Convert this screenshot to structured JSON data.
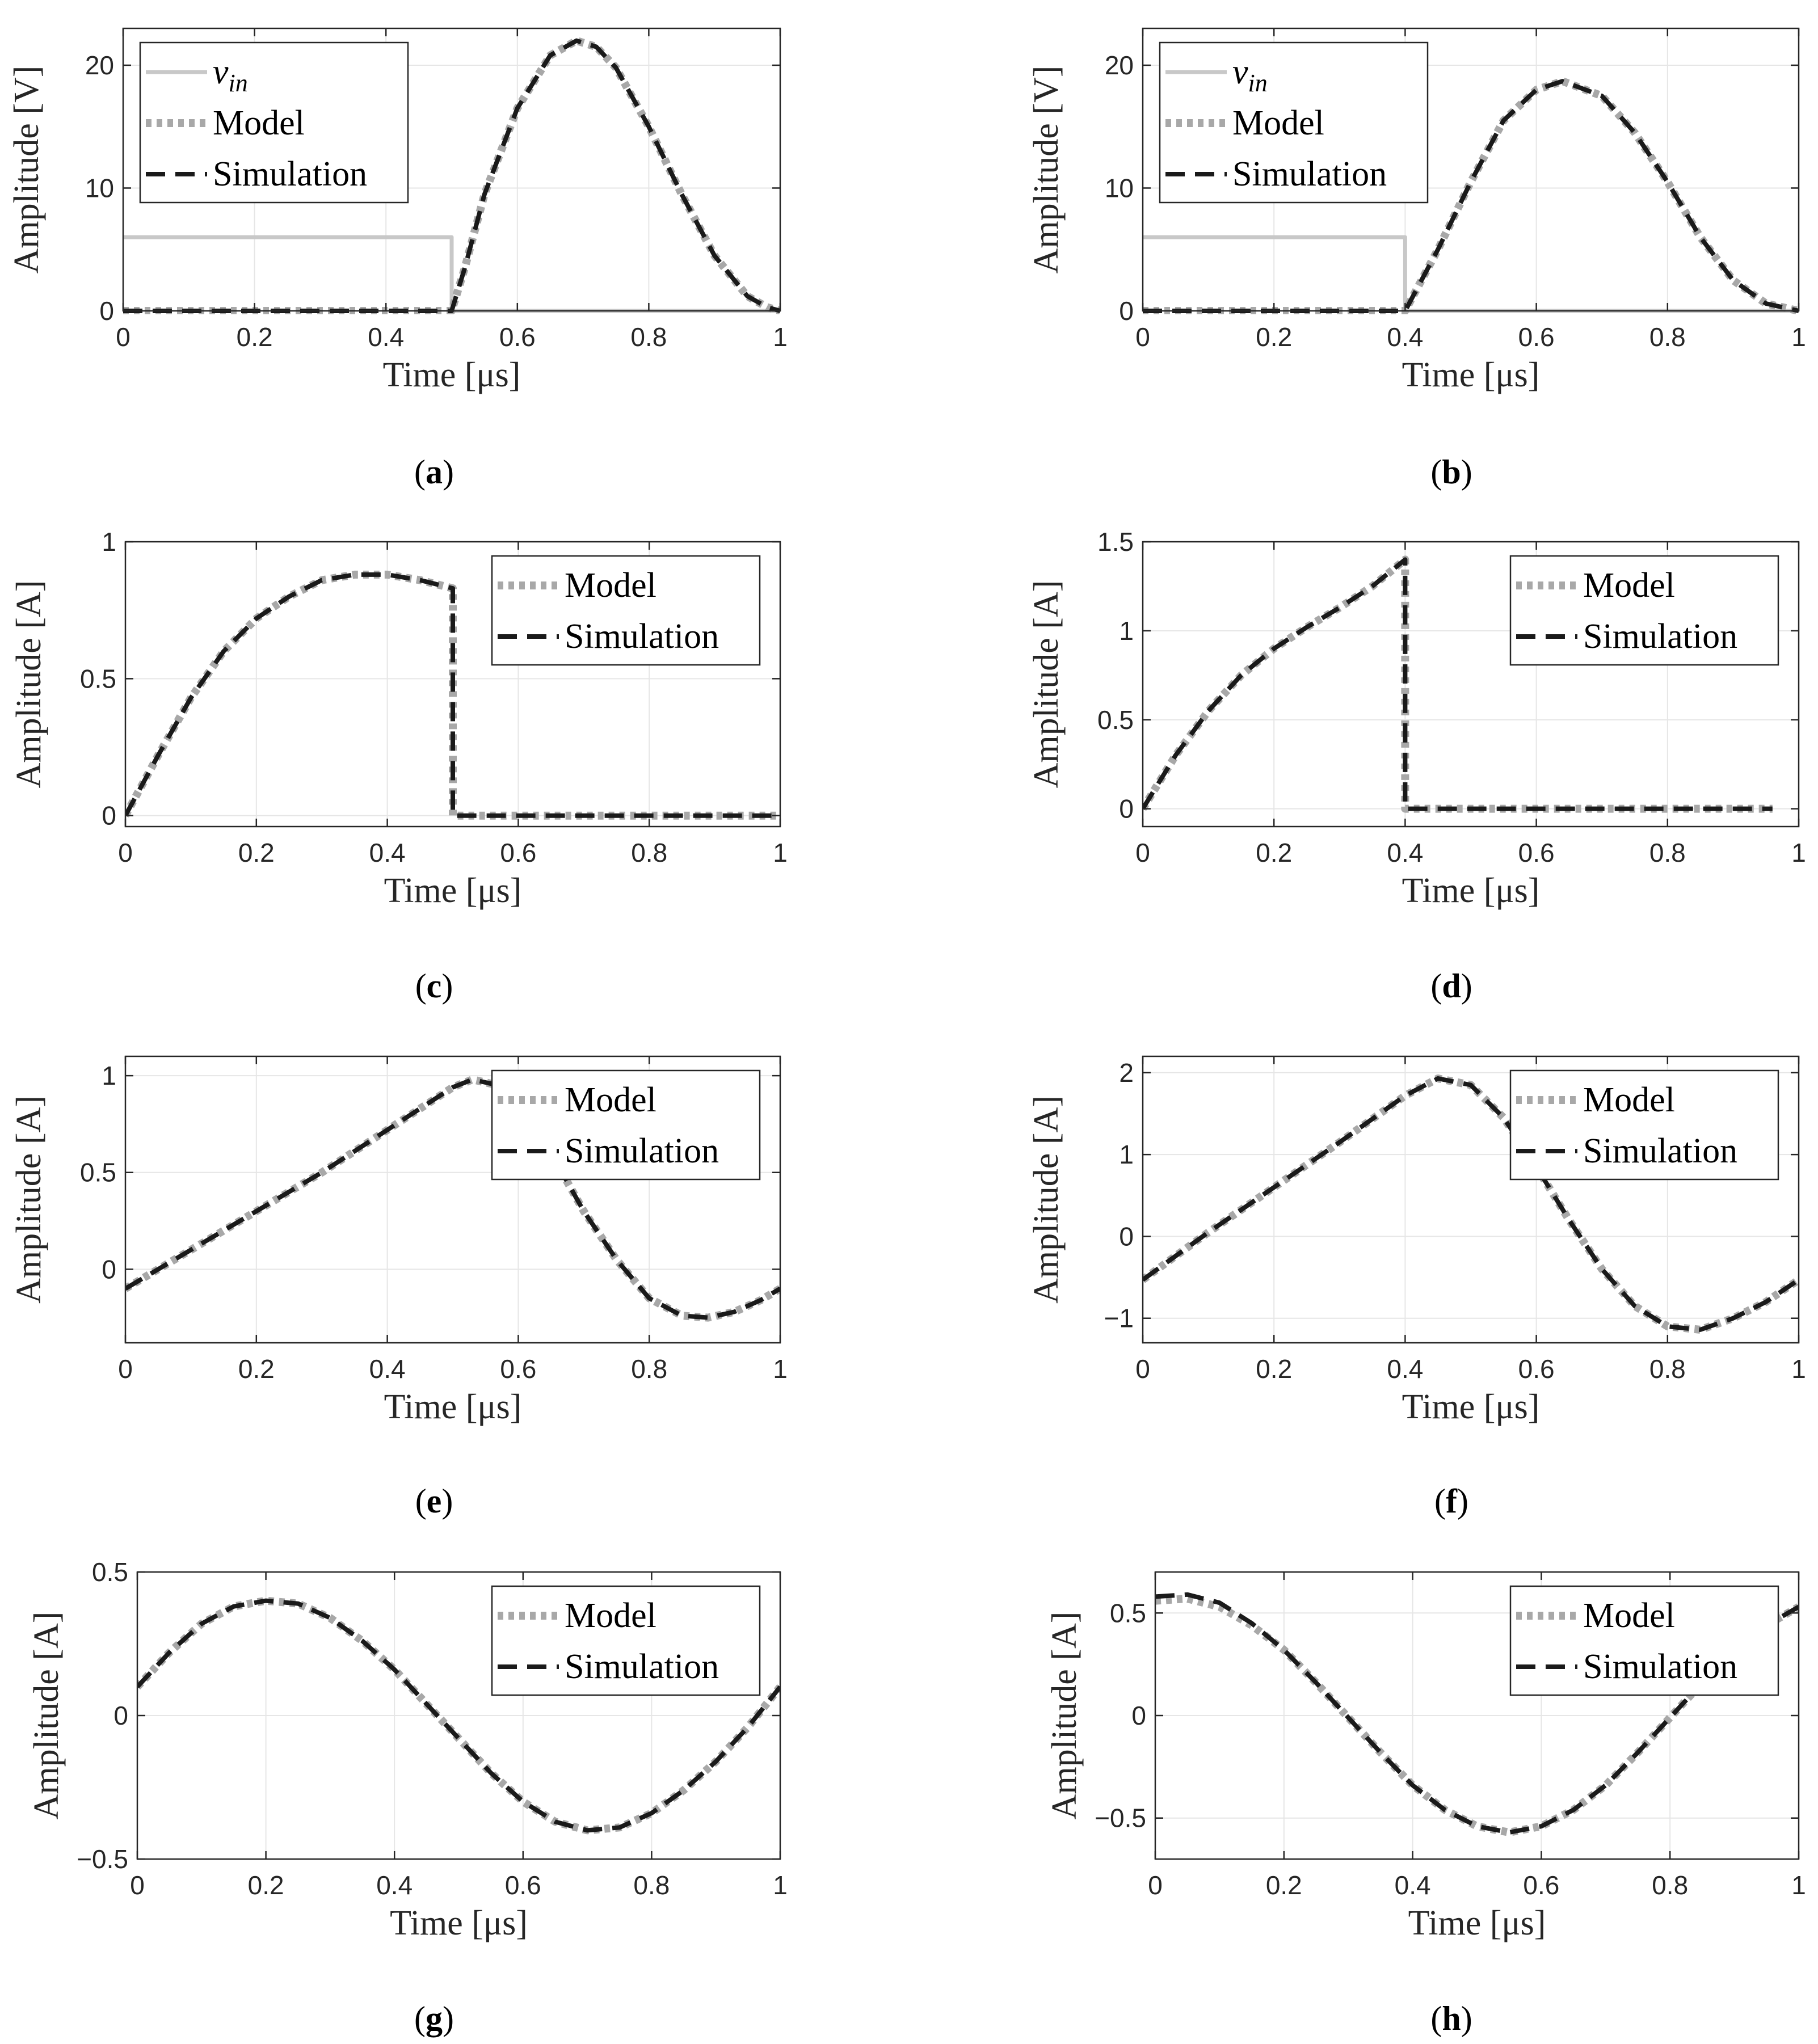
{
  "chart_data": [
    {
      "id": "a",
      "caption": "a",
      "type": "line",
      "xlabel": "Time [μs]",
      "ylabel": "Amplitude [V]",
      "xlim": [
        0,
        1
      ],
      "ylim": [
        0,
        23
      ],
      "xticks": [
        0,
        0.2,
        0.4,
        0.6,
        0.8,
        1
      ],
      "xticklabels": [
        "0",
        "0.2",
        "0.4",
        "0.6",
        "0.8",
        "1"
      ],
      "yticks": [
        0,
        10,
        20
      ],
      "yticklabels": [
        "0",
        "10",
        "20"
      ],
      "grid": true,
      "legend_position": "top-left",
      "series": [
        {
          "name": "v",
          "name_sub": "in",
          "style": "vin",
          "x": [
            0,
            0.5,
            0.5,
            0.5,
            1
          ],
          "y": [
            6,
            6,
            0,
            0,
            0
          ]
        },
        {
          "name": "Model",
          "style": "model",
          "x": [
            0,
            0.5,
            0.52,
            0.55,
            0.6,
            0.65,
            0.69,
            0.72,
            0.75,
            0.8,
            0.85,
            0.9,
            0.95,
            0.98,
            1.0
          ],
          "y": [
            0,
            0,
            3.5,
            9.5,
            16.5,
            20.8,
            22,
            21.5,
            19.8,
            15,
            9.5,
            4.5,
            1.2,
            0.3,
            0
          ]
        },
        {
          "name": "Simulation",
          "style": "sim",
          "x": [
            0,
            0.5,
            0.52,
            0.55,
            0.6,
            0.65,
            0.69,
            0.72,
            0.75,
            0.8,
            0.85,
            0.9,
            0.95,
            0.98,
            1.0
          ],
          "y": [
            0,
            0,
            3.5,
            9.5,
            16.5,
            20.8,
            22,
            21.5,
            19.8,
            15,
            9.5,
            4.5,
            1.2,
            0.3,
            0
          ]
        }
      ]
    },
    {
      "id": "b",
      "caption": "b",
      "type": "line",
      "xlabel": "Time [μs]",
      "ylabel": "Amplitude [V]",
      "xlim": [
        0,
        1
      ],
      "ylim": [
        0,
        23
      ],
      "xticks": [
        0,
        0.2,
        0.4,
        0.6,
        0.8,
        1
      ],
      "xticklabels": [
        "0",
        "0.2",
        "0.4",
        "0.6",
        "0.8",
        "1"
      ],
      "yticks": [
        0,
        10,
        20
      ],
      "yticklabels": [
        "0",
        "10",
        "20"
      ],
      "grid": true,
      "legend_position": "top-left",
      "series": [
        {
          "name": "v",
          "name_sub": "in",
          "style": "vin",
          "x": [
            0,
            0.4,
            0.4,
            0.4,
            1
          ],
          "y": [
            6,
            6,
            0,
            0,
            0
          ]
        },
        {
          "name": "Model",
          "style": "model",
          "x": [
            0,
            0.4,
            0.45,
            0.5,
            0.55,
            0.6,
            0.64,
            0.7,
            0.75,
            0.8,
            0.85,
            0.9,
            0.95,
            1.0
          ],
          "y": [
            0,
            0,
            5,
            10.5,
            15.5,
            18,
            18.7,
            17.5,
            14.5,
            10.5,
            6,
            2.5,
            0.6,
            0
          ]
        },
        {
          "name": "Simulation",
          "style": "sim",
          "x": [
            0,
            0.4,
            0.45,
            0.5,
            0.55,
            0.6,
            0.64,
            0.7,
            0.75,
            0.8,
            0.85,
            0.9,
            0.95,
            1.0
          ],
          "y": [
            0,
            0,
            5,
            10.5,
            15.5,
            18,
            18.7,
            17.5,
            14.5,
            10.5,
            6,
            2.5,
            0.6,
            0
          ]
        }
      ]
    },
    {
      "id": "c",
      "caption": "c",
      "type": "line",
      "xlabel": "Time [μs]",
      "ylabel": "Amplitude [A]",
      "xlim": [
        0,
        1
      ],
      "ylim": [
        -0.04,
        1
      ],
      "xticks": [
        0,
        0.2,
        0.4,
        0.6,
        0.8,
        1
      ],
      "xticklabels": [
        "0",
        "0.2",
        "0.4",
        "0.6",
        "0.8",
        "1"
      ],
      "yticks": [
        0,
        0.5,
        1
      ],
      "yticklabels": [
        "0",
        "0.5",
        "1"
      ],
      "grid": true,
      "legend_position": "top-right",
      "series": [
        {
          "name": "Model",
          "style": "model",
          "x": [
            0,
            0.05,
            0.1,
            0.15,
            0.2,
            0.25,
            0.3,
            0.35,
            0.37,
            0.4,
            0.45,
            0.5,
            0.5,
            1.0
          ],
          "y": [
            0,
            0.22,
            0.43,
            0.6,
            0.72,
            0.8,
            0.86,
            0.88,
            0.88,
            0.88,
            0.86,
            0.83,
            0,
            0
          ]
        },
        {
          "name": "Simulation",
          "style": "sim",
          "x": [
            0,
            0.05,
            0.1,
            0.15,
            0.2,
            0.25,
            0.3,
            0.35,
            0.37,
            0.4,
            0.45,
            0.5,
            0.5,
            1.0
          ],
          "y": [
            0,
            0.22,
            0.43,
            0.6,
            0.72,
            0.8,
            0.86,
            0.88,
            0.88,
            0.88,
            0.86,
            0.83,
            0,
            0
          ]
        }
      ]
    },
    {
      "id": "d",
      "caption": "d",
      "type": "line",
      "xlabel": "Time [μs]",
      "ylabel": "Amplitude [A]",
      "xlim": [
        0,
        1
      ],
      "ylim": [
        -0.1,
        1.5
      ],
      "xticks": [
        0,
        0.2,
        0.4,
        0.6,
        0.8,
        1
      ],
      "xticklabels": [
        "0",
        "0.2",
        "0.4",
        "0.6",
        "0.8",
        "1"
      ],
      "yticks": [
        0,
        0.5,
        1,
        1.5
      ],
      "yticklabels": [
        "0",
        "0.5",
        "1",
        "1.5"
      ],
      "grid": true,
      "legend_position": "top-right",
      "series": [
        {
          "name": "Model",
          "style": "model",
          "x": [
            0,
            0.05,
            0.1,
            0.15,
            0.2,
            0.25,
            0.3,
            0.35,
            0.4,
            0.4,
            0.96
          ],
          "y": [
            0,
            0.3,
            0.55,
            0.75,
            0.9,
            1.02,
            1.13,
            1.25,
            1.4,
            0,
            0
          ]
        },
        {
          "name": "Simulation",
          "style": "sim",
          "x": [
            0,
            0.05,
            0.1,
            0.15,
            0.2,
            0.25,
            0.3,
            0.35,
            0.4,
            0.4,
            0.96
          ],
          "y": [
            0,
            0.3,
            0.55,
            0.75,
            0.9,
            1.02,
            1.13,
            1.25,
            1.4,
            0,
            0
          ]
        }
      ]
    },
    {
      "id": "e",
      "caption": "e",
      "type": "line",
      "xlabel": "Time [μs]",
      "ylabel": "Amplitude [A]",
      "xlim": [
        0,
        1
      ],
      "ylim": [
        -0.38,
        1.1
      ],
      "xticks": [
        0,
        0.2,
        0.4,
        0.6,
        0.8,
        1
      ],
      "xticklabels": [
        "0",
        "0.2",
        "0.4",
        "0.6",
        "0.8",
        "1"
      ],
      "yticks": [
        0,
        0.5,
        1
      ],
      "yticklabels": [
        "0",
        "0.5",
        "1"
      ],
      "grid": true,
      "legend_position": "top-right",
      "series": [
        {
          "name": "Model",
          "style": "model",
          "x": [
            0,
            0.1,
            0.2,
            0.3,
            0.4,
            0.5,
            0.53,
            0.57,
            0.6,
            0.65,
            0.7,
            0.75,
            0.8,
            0.85,
            0.89,
            0.93,
            0.97,
            1.0
          ],
          "y": [
            -0.1,
            0.1,
            0.3,
            0.5,
            0.72,
            0.94,
            0.98,
            0.95,
            0.85,
            0.6,
            0.3,
            0.05,
            -0.15,
            -0.24,
            -0.25,
            -0.22,
            -0.16,
            -0.1
          ]
        },
        {
          "name": "Simulation",
          "style": "sim",
          "x": [
            0,
            0.1,
            0.2,
            0.3,
            0.4,
            0.5,
            0.53,
            0.57,
            0.6,
            0.65,
            0.7,
            0.75,
            0.8,
            0.85,
            0.89,
            0.93,
            0.97,
            1.0
          ],
          "y": [
            -0.1,
            0.1,
            0.3,
            0.5,
            0.72,
            0.94,
            0.98,
            0.95,
            0.85,
            0.6,
            0.3,
            0.05,
            -0.15,
            -0.24,
            -0.25,
            -0.22,
            -0.16,
            -0.1
          ]
        }
      ]
    },
    {
      "id": "f",
      "caption": "f",
      "type": "line",
      "xlabel": "Time [μs]",
      "ylabel": "Amplitude [A]",
      "xlim": [
        0,
        1
      ],
      "ylim": [
        -1.3,
        2.2
      ],
      "xticks": [
        0,
        0.2,
        0.4,
        0.6,
        0.8,
        1
      ],
      "xticklabels": [
        "0",
        "0.2",
        "0.4",
        "0.6",
        "0.8",
        "1"
      ],
      "yticks": [
        -1,
        0,
        1,
        2
      ],
      "yticklabels": [
        "−1",
        "0",
        "1",
        "2"
      ],
      "grid": true,
      "legend_position": "top-right",
      "series": [
        {
          "name": "Model",
          "style": "model",
          "x": [
            0,
            0.1,
            0.2,
            0.3,
            0.4,
            0.45,
            0.5,
            0.55,
            0.6,
            0.65,
            0.7,
            0.75,
            0.8,
            0.85,
            0.9,
            0.95,
            1.0
          ],
          "y": [
            -0.53,
            0.05,
            0.6,
            1.15,
            1.72,
            1.93,
            1.85,
            1.45,
            0.85,
            0.2,
            -0.4,
            -0.85,
            -1.1,
            -1.14,
            -1.0,
            -0.8,
            -0.53
          ]
        },
        {
          "name": "Simulation",
          "style": "sim",
          "x": [
            0,
            0.1,
            0.2,
            0.3,
            0.4,
            0.45,
            0.5,
            0.55,
            0.6,
            0.65,
            0.7,
            0.75,
            0.8,
            0.85,
            0.9,
            0.95,
            1.0
          ],
          "y": [
            -0.53,
            0.05,
            0.6,
            1.15,
            1.72,
            1.93,
            1.85,
            1.45,
            0.85,
            0.2,
            -0.4,
            -0.85,
            -1.1,
            -1.14,
            -1.0,
            -0.8,
            -0.53
          ]
        }
      ]
    },
    {
      "id": "g",
      "caption": "g",
      "type": "line",
      "xlabel": "Time [μs]",
      "ylabel": "Amplitude [A]",
      "xlim": [
        0,
        1
      ],
      "ylim": [
        -0.5,
        0.5
      ],
      "xticks": [
        0,
        0.2,
        0.4,
        0.6,
        0.8,
        1
      ],
      "xticklabels": [
        "0",
        "0.2",
        "0.4",
        "0.6",
        "0.8",
        "1"
      ],
      "yticks": [
        -0.5,
        0,
        0.5
      ],
      "yticklabels": [
        "−0.5",
        "0",
        "0.5"
      ],
      "grid": true,
      "legend_position": "top-right",
      "series": [
        {
          "name": "Model",
          "style": "model",
          "x": [
            0,
            0.05,
            0.1,
            0.15,
            0.2,
            0.25,
            0.3,
            0.35,
            0.4,
            0.45,
            0.5,
            0.55,
            0.6,
            0.65,
            0.7,
            0.75,
            0.8,
            0.85,
            0.9,
            0.95,
            1.0
          ],
          "y": [
            0.1,
            0.22,
            0.32,
            0.38,
            0.4,
            0.39,
            0.34,
            0.26,
            0.16,
            0.04,
            -0.08,
            -0.2,
            -0.3,
            -0.37,
            -0.4,
            -0.39,
            -0.34,
            -0.26,
            -0.16,
            -0.04,
            0.1
          ]
        },
        {
          "name": "Simulation",
          "style": "sim",
          "x": [
            0,
            0.05,
            0.1,
            0.15,
            0.2,
            0.25,
            0.3,
            0.35,
            0.4,
            0.45,
            0.5,
            0.55,
            0.6,
            0.65,
            0.7,
            0.75,
            0.8,
            0.85,
            0.9,
            0.95,
            1.0
          ],
          "y": [
            0.1,
            0.22,
            0.32,
            0.38,
            0.4,
            0.39,
            0.34,
            0.26,
            0.16,
            0.04,
            -0.08,
            -0.2,
            -0.3,
            -0.37,
            -0.4,
            -0.39,
            -0.34,
            -0.26,
            -0.16,
            -0.04,
            0.1
          ]
        }
      ]
    },
    {
      "id": "h",
      "caption": "h",
      "type": "line",
      "xlabel": "Time [μs]",
      "ylabel": "Amplitude [A]",
      "xlim": [
        0,
        1
      ],
      "ylim": [
        -0.7,
        0.7
      ],
      "xticks": [
        0,
        0.2,
        0.4,
        0.6,
        0.8,
        1
      ],
      "xticklabels": [
        "0",
        "0.2",
        "0.4",
        "0.6",
        "0.8",
        "1"
      ],
      "yticks": [
        -0.5,
        0,
        0.5
      ],
      "yticklabels": [
        "−0.5",
        "0",
        "0.5"
      ],
      "grid": true,
      "legend_position": "top-right",
      "series": [
        {
          "name": "Model",
          "style": "model",
          "x": [
            0,
            0.05,
            0.1,
            0.15,
            0.2,
            0.25,
            0.3,
            0.35,
            0.4,
            0.45,
            0.5,
            0.55,
            0.6,
            0.65,
            0.7,
            0.75,
            0.8,
            0.85,
            0.9,
            0.95,
            1.0
          ],
          "y": [
            0.56,
            0.57,
            0.53,
            0.44,
            0.32,
            0.16,
            -0.01,
            -0.18,
            -0.34,
            -0.46,
            -0.54,
            -0.57,
            -0.54,
            -0.46,
            -0.34,
            -0.18,
            -0.01,
            0.16,
            0.32,
            0.44,
            0.53
          ]
        },
        {
          "name": "Simulation",
          "style": "sim",
          "x": [
            0,
            0.05,
            0.1,
            0.15,
            0.2,
            0.25,
            0.3,
            0.35,
            0.4,
            0.45,
            0.5,
            0.55,
            0.6,
            0.65,
            0.7,
            0.75,
            0.8,
            0.85,
            0.9,
            0.95,
            1.0
          ],
          "y": [
            0.58,
            0.59,
            0.55,
            0.45,
            0.32,
            0.16,
            -0.01,
            -0.18,
            -0.34,
            -0.46,
            -0.54,
            -0.57,
            -0.54,
            -0.46,
            -0.34,
            -0.18,
            -0.01,
            0.16,
            0.32,
            0.44,
            0.53
          ]
        }
      ]
    }
  ]
}
